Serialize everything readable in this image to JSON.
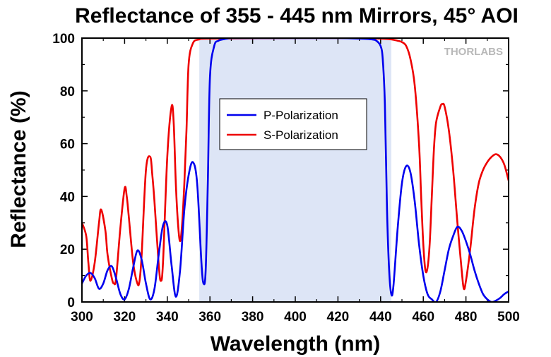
{
  "chart_data": {
    "type": "line",
    "title": "Reflectance of 355 - 445 nm Mirrors, 45° AOI",
    "xlabel": "Wavelength (nm)",
    "ylabel": "Reflectance (%)",
    "xlim": [
      300,
      500
    ],
    "ylim": [
      0,
      100
    ],
    "x_ticks": [
      "300",
      "320",
      "340",
      "360",
      "380",
      "400",
      "420",
      "440",
      "460",
      "480",
      "500"
    ],
    "y_ticks": [
      "0",
      "20",
      "40",
      "60",
      "80",
      "100"
    ],
    "highlight_band": [
      355,
      445
    ],
    "highlight_color": "#dde5f6",
    "legend_position": "upper-center",
    "watermark": "THORLABS",
    "series": [
      {
        "name": "P-Polarization",
        "color": "#0000ee",
        "x": [
          300,
          302,
          304,
          306,
          308,
          310,
          312,
          314,
          316,
          318,
          320,
          322,
          324,
          326,
          328,
          330,
          332,
          334,
          336,
          338,
          340,
          342,
          344,
          346,
          348,
          350,
          352,
          354,
          356,
          357,
          358,
          359,
          360,
          362,
          364,
          366,
          368,
          370,
          380,
          400,
          420,
          430,
          436,
          438,
          440,
          441,
          442,
          443,
          444,
          445,
          446,
          448,
          450,
          452,
          454,
          456,
          458,
          460,
          462,
          464,
          466,
          468,
          470,
          472,
          474,
          476,
          478,
          480,
          482,
          484,
          486,
          488,
          490,
          492,
          494,
          496,
          498,
          500
        ],
        "y": [
          7,
          10,
          11,
          9,
          5,
          7,
          12,
          13.5,
          9,
          3,
          1,
          5,
          13,
          19.5,
          16,
          7,
          1,
          5,
          18,
          29,
          29,
          14,
          2,
          12,
          35,
          48,
          53,
          45,
          15,
          7,
          12,
          45,
          85,
          97,
          99,
          99.5,
          99.8,
          100,
          100,
          100,
          100,
          99.8,
          99.5,
          99,
          97,
          92,
          75,
          35,
          12,
          3,
          6,
          28,
          45,
          51.5,
          49,
          38,
          22,
          10,
          3,
          1,
          0,
          4,
          12,
          20,
          25,
          28.5,
          27,
          23,
          18,
          12,
          7,
          3,
          1,
          0,
          0.5,
          1.5,
          3,
          4
        ]
      },
      {
        "name": "S-Polarization",
        "color": "#ee0000",
        "x": [
          300,
          302,
          303,
          304,
          306,
          308,
          309,
          311,
          312,
          314,
          315,
          316,
          318,
          320,
          321,
          322,
          324,
          326,
          327,
          328,
          330,
          332,
          333,
          334,
          336,
          337,
          338,
          340,
          342,
          343,
          344,
          345,
          346,
          347,
          348,
          349,
          350,
          352,
          355,
          360,
          400,
          430,
          440,
          445,
          448,
          450,
          452,
          454,
          456,
          458,
          459,
          460,
          461,
          462,
          463,
          464,
          465,
          466,
          468,
          469,
          470,
          472,
          474,
          476,
          478,
          479,
          480,
          482,
          484,
          486,
          488,
          490,
          492,
          494,
          496,
          498,
          500
        ],
        "y": [
          30,
          25,
          15,
          8,
          15,
          30,
          35,
          27,
          18,
          9,
          7,
          9,
          28,
          43,
          40,
          32,
          15,
          7,
          8,
          18,
          50,
          55,
          48,
          38,
          14,
          8,
          15,
          55,
          74,
          68,
          45,
          30,
          23,
          30,
          45,
          65,
          90,
          98,
          99.5,
          99.8,
          100,
          100,
          99.8,
          99.5,
          99,
          98.5,
          97,
          92,
          82,
          60,
          40,
          22,
          12,
          13,
          22,
          40,
          58,
          68,
          74,
          75,
          74,
          65,
          50,
          30,
          12,
          5,
          8,
          20,
          35,
          45,
          50,
          53,
          55,
          56,
          55,
          52,
          46
        ]
      }
    ]
  }
}
